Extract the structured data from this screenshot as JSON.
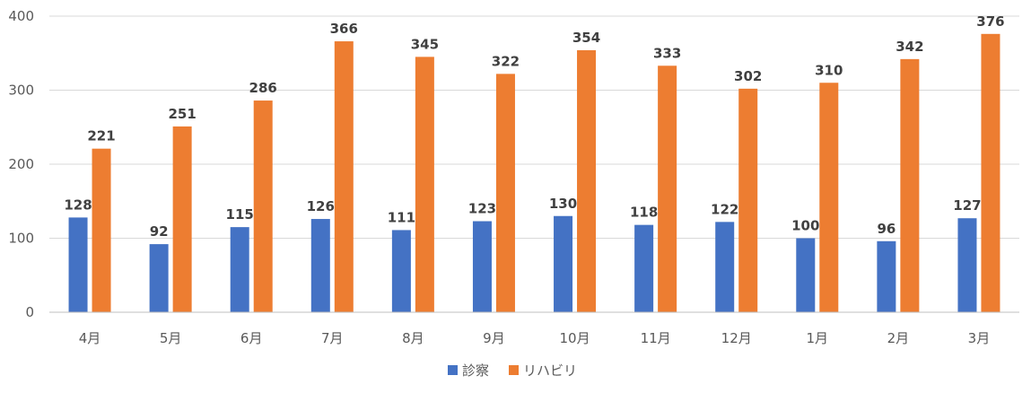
{
  "chart_data": {
    "type": "bar",
    "categories": [
      "4月",
      "5月",
      "6月",
      "7月",
      "8月",
      "9月",
      "10月",
      "11月",
      "12月",
      "1月",
      "2月",
      "3月"
    ],
    "series": [
      {
        "name": "診察",
        "color": "#4472C4",
        "values": [
          128,
          92,
          115,
          126,
          111,
          123,
          130,
          118,
          122,
          100,
          96,
          127
        ]
      },
      {
        "name": "リハビリ",
        "color": "#ED7D31",
        "values": [
          221,
          251,
          286,
          366,
          345,
          322,
          354,
          333,
          302,
          310,
          342,
          376
        ]
      }
    ],
    "ylim": [
      0,
      400
    ],
    "yticks": [
      0,
      100,
      200,
      300,
      400
    ],
    "grid": true,
    "data_labels": true,
    "legend_position": "bottom"
  }
}
